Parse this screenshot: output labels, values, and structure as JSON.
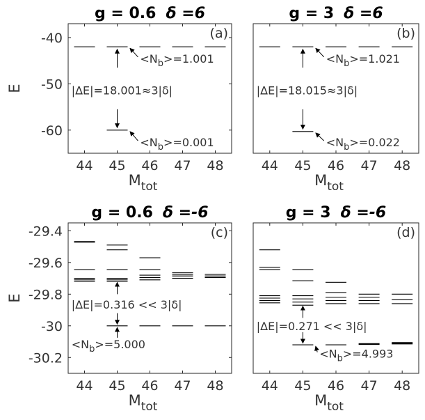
{
  "chart_data": [
    {
      "type": "scatter",
      "panel_label": "(a)",
      "title": "g = 0.6",
      "title_delta": "δ =6",
      "xlabel": "M",
      "xlabel_sub": "tot",
      "ylabel": "E",
      "xlim": [
        43.5,
        48.5
      ],
      "ylim": [
        -65,
        -37
      ],
      "x_ticks": [
        44,
        45,
        46,
        47,
        48
      ],
      "y_ticks": [
        -40,
        -50,
        -60
      ],
      "y_tick_labels": [
        "-40",
        "-50",
        "-60"
      ],
      "levels": [
        {
          "x": 44,
          "e": -42
        },
        {
          "x": 45,
          "e": -42
        },
        {
          "x": 45,
          "e": -60
        },
        {
          "x": 46,
          "e": -42
        },
        {
          "x": 47,
          "e": -42
        },
        {
          "x": 48,
          "e": -42
        }
      ],
      "annotations": [
        {
          "text": "<N",
          "sub": "b",
          "tail": ">=1.001",
          "x": 45.7,
          "e": -44.5,
          "arrow_to": [
            45.05,
            -42
          ]
        },
        {
          "text": "|ΔE|=18.001≈3|δ|",
          "x": 43.6,
          "e": -51.4
        },
        {
          "text": "<N",
          "sub": "b",
          "tail": ">=0.001",
          "x": 45.7,
          "e": -62.6,
          "arrow_to": [
            45.05,
            -60
          ]
        }
      ],
      "gap_arrows": [
        {
          "x": 45,
          "e_from": -51,
          "e_to_up": -42.5,
          "e_to_down": -59.5,
          "up_start": -46.5,
          "down_start": -55.5
        }
      ]
    },
    {
      "type": "scatter",
      "panel_label": "(b)",
      "title": "g = 3",
      "title_delta": "δ =6",
      "xlabel": "M",
      "xlabel_sub": "tot",
      "ylabel": "",
      "xlim": [
        43.5,
        48.5
      ],
      "ylim": [
        -65,
        -37
      ],
      "x_ticks": [
        44,
        45,
        46,
        47,
        48
      ],
      "y_ticks": [],
      "y_tick_labels": [],
      "levels": [
        {
          "x": 44,
          "e": -42
        },
        {
          "x": 45,
          "e": -42
        },
        {
          "x": 45,
          "e": -60.3
        },
        {
          "x": 46,
          "e": -42
        },
        {
          "x": 47,
          "e": -42
        },
        {
          "x": 48,
          "e": -42
        }
      ],
      "annotations": [
        {
          "text": "<N",
          "sub": "b",
          "tail": ">=1.021",
          "x": 45.7,
          "e": -44.5,
          "arrow_to": [
            45.05,
            -42
          ]
        },
        {
          "text": "|ΔE|=18.015≈3|δ|",
          "x": 43.6,
          "e": -51.4
        },
        {
          "text": "<N",
          "sub": "b",
          "tail": ">=0.022",
          "x": 45.7,
          "e": -62.6,
          "arrow_to": [
            45.05,
            -60.3
          ]
        }
      ],
      "gap_arrows": [
        {
          "x": 45,
          "e_from": -51,
          "e_to_up": -42.5,
          "e_to_down": -59.8,
          "up_start": -46.5,
          "down_start": -55.5
        }
      ]
    },
    {
      "type": "scatter",
      "panel_label": "(c)",
      "title": "g = 0.6",
      "title_delta": "δ =-6",
      "xlabel": "M",
      "xlabel_sub": "tot",
      "ylabel": "E",
      "xlim": [
        43.5,
        48.5
      ],
      "ylim": [
        -30.3,
        -29.35
      ],
      "x_ticks": [
        44,
        45,
        46,
        47,
        48
      ],
      "y_ticks": [
        -29.4,
        -29.6,
        -29.8,
        -30,
        -30.2
      ],
      "y_tick_labels": [
        "-29.4",
        "-29.6",
        "-29.8",
        "-30",
        "-30.2"
      ],
      "levels": [
        {
          "x": 44,
          "e": -29.47,
          "w": 2
        },
        {
          "x": 44,
          "e": -29.645
        },
        {
          "x": 44,
          "e": -29.7
        },
        {
          "x": 44,
          "e": -29.71
        },
        {
          "x": 44,
          "e": -29.72
        },
        {
          "x": 45,
          "e": -29.49
        },
        {
          "x": 45,
          "e": -29.52
        },
        {
          "x": 45,
          "e": -29.645
        },
        {
          "x": 45,
          "e": -29.7
        },
        {
          "x": 45,
          "e": -29.71
        },
        {
          "x": 45,
          "e": -29.72
        },
        {
          "x": 45,
          "e": -30.0
        },
        {
          "x": 46,
          "e": -29.57
        },
        {
          "x": 46,
          "e": -29.645
        },
        {
          "x": 46,
          "e": -29.68
        },
        {
          "x": 46,
          "e": -29.695
        },
        {
          "x": 46,
          "e": -29.71
        },
        {
          "x": 47,
          "e": -29.665
        },
        {
          "x": 47,
          "e": -29.675
        },
        {
          "x": 47,
          "e": -29.685
        },
        {
          "x": 47,
          "e": -29.7
        },
        {
          "x": 48,
          "e": -29.675
        },
        {
          "x": 48,
          "e": -29.685
        },
        {
          "x": 48,
          "e": -29.695
        },
        {
          "x": 48,
          "e": -30.0
        },
        {
          "x": 46,
          "e": -30.0
        },
        {
          "x": 47,
          "e": -30.0
        },
        {
          "x": 44,
          "e": -30.0,
          "skip": true
        }
      ],
      "annotations": [
        {
          "text": "|ΔE|=0.316 << 3|δ|",
          "x": 43.6,
          "e": -29.865
        },
        {
          "text": "<N",
          "sub": "b",
          "tail": ">=5.000",
          "x": 43.6,
          "e": -30.115
        }
      ],
      "gap_arrows": [
        {
          "x": 45,
          "e_from": -29.86,
          "e_to_up": -29.725,
          "e_to_down": -29.99,
          "up_start": -29.8,
          "down_start": -29.92
        }
      ],
      "extra_arrows": [
        {
          "x": 45,
          "e_from": -30.075,
          "e_to": -30.01
        }
      ]
    },
    {
      "type": "scatter",
      "panel_label": "(d)",
      "title": "g = 3",
      "title_delta": "δ =-6",
      "xlabel": "M",
      "xlabel_sub": "tot",
      "ylabel": "",
      "xlim": [
        43.5,
        48.5
      ],
      "ylim": [
        -30.3,
        -29.35
      ],
      "x_ticks": [
        44,
        45,
        46,
        47,
        48
      ],
      "y_ticks": [],
      "y_tick_labels": [],
      "levels": [
        {
          "x": 44,
          "e": -29.52
        },
        {
          "x": 44,
          "e": -29.63
        },
        {
          "x": 44,
          "e": -29.645
        },
        {
          "x": 44,
          "e": -29.81
        },
        {
          "x": 44,
          "e": -29.825
        },
        {
          "x": 44,
          "e": -29.84
        },
        {
          "x": 44,
          "e": -29.855
        },
        {
          "x": 45,
          "e": -29.645
        },
        {
          "x": 45,
          "e": -29.715
        },
        {
          "x": 45,
          "e": -29.81
        },
        {
          "x": 45,
          "e": -29.83
        },
        {
          "x": 45,
          "e": -29.85
        },
        {
          "x": 45,
          "e": -29.87
        },
        {
          "x": 45,
          "e": -30.12
        },
        {
          "x": 46,
          "e": -29.725
        },
        {
          "x": 46,
          "e": -29.79
        },
        {
          "x": 46,
          "e": -29.82
        },
        {
          "x": 46,
          "e": -29.84
        },
        {
          "x": 46,
          "e": -29.86
        },
        {
          "x": 46,
          "e": -30.12
        },
        {
          "x": 47,
          "e": -29.8
        },
        {
          "x": 47,
          "e": -29.82
        },
        {
          "x": 47,
          "e": -29.84
        },
        {
          "x": 47,
          "e": -29.86
        },
        {
          "x": 47,
          "e": -30.115,
          "w": 2.4
        },
        {
          "x": 48,
          "e": -29.8
        },
        {
          "x": 48,
          "e": -29.835
        },
        {
          "x": 48,
          "e": -29.86
        },
        {
          "x": 48,
          "e": -30.11,
          "w": 3.2
        }
      ],
      "annotations": [
        {
          "text": "|ΔE|=0.271 << 3|δ|",
          "x": 43.6,
          "e": -30.0
        },
        {
          "text": "<N",
          "sub": "b",
          "tail": ">=4.993",
          "x": 45.5,
          "e": -30.175,
          "arrow_to": [
            45.05,
            -30.12
          ]
        }
      ],
      "gap_arrows": [
        {
          "x": 45,
          "e_from": -29.99,
          "e_to_up": -29.875,
          "e_to_down": -30.11,
          "up_start": -29.95,
          "down_start": -30.04
        }
      ]
    }
  ]
}
